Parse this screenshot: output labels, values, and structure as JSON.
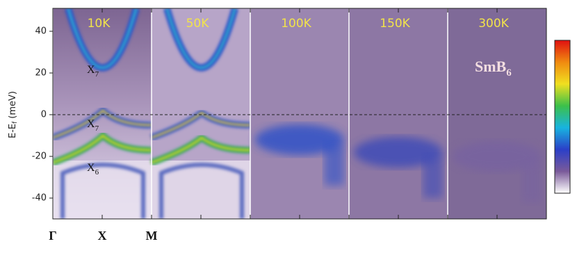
{
  "chart_data": {
    "type": "heatmap",
    "y_label": {
      "text": "E-E",
      "subscript": "f",
      "unit": "(meV)"
    },
    "panels": [
      "10K",
      "50K",
      "100K",
      "150K",
      "300K"
    ],
    "material": {
      "text": "SmB",
      "subscript": "6"
    },
    "band_labels": [
      {
        "text": "X",
        "subscript": "7"
      },
      {
        "text": "X",
        "subscript": "7"
      },
      {
        "text": "X",
        "subscript": "6"
      }
    ],
    "k_labels": [
      "Γ",
      "X",
      "M"
    ],
    "ylim": [
      -50,
      51
    ],
    "yticks": [
      -40,
      -20,
      0,
      20,
      40
    ],
    "fermi_line": true,
    "colorbar": [
      "#ffffff",
      "#7a5a9a",
      "#2b3fc8",
      "#18b4e0",
      "#3cc04a",
      "#f0e020",
      "#f08a10",
      "#e01010"
    ]
  }
}
